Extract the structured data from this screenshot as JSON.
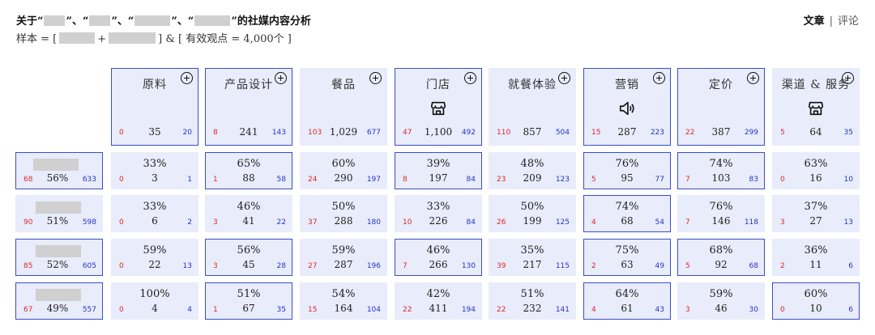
{
  "header": {
    "title_segments": [
      "关于“",
      "”、“",
      "”、“",
      "”、“",
      "”的社媒内容分析"
    ],
    "subtitle_prefix": "样本 = [",
    "subtitle_plus": "+",
    "subtitle_suffix": "] & [ 有效观点 = 4,000个 ]"
  },
  "view_switch": {
    "active": "文章",
    "separator": "|",
    "inactive": "评论"
  },
  "columns": [
    {
      "name": "原料",
      "icon": "plus-icon",
      "left": "0",
      "mid": "35",
      "right": "20",
      "selected": true
    },
    {
      "name": "产品设计",
      "icon": "plus-icon",
      "left": "8",
      "mid": "241",
      "right": "143",
      "selected": true
    },
    {
      "name": "餐品",
      "icon": "plus-icon",
      "left": "103",
      "mid": "1,029",
      "right": "677",
      "selected": false
    },
    {
      "name": "门店",
      "icon": "store-icon",
      "left": "47",
      "mid": "1,100",
      "right": "492",
      "selected": true
    },
    {
      "name": "就餐体验",
      "icon": "plus-icon",
      "left": "110",
      "mid": "857",
      "right": "504",
      "selected": false
    },
    {
      "name": "营销",
      "icon": "speaker-icon",
      "left": "15",
      "mid": "287",
      "right": "223",
      "selected": true
    },
    {
      "name": "定价",
      "icon": "plus-icon",
      "left": "22",
      "mid": "387",
      "right": "299",
      "selected": true
    },
    {
      "name": "渠道 & 服务",
      "icon": "store-icon",
      "left": "5",
      "mid": "64",
      "right": "35",
      "selected": false
    }
  ],
  "rows": [
    {
      "label": {
        "left": "68",
        "pct": "56%",
        "right": "633",
        "selected": true
      },
      "cells": [
        {
          "pct": "33%",
          "left": "0",
          "mid": "3",
          "right": "1",
          "selected": false
        },
        {
          "pct": "65%",
          "left": "1",
          "mid": "88",
          "right": "58",
          "selected": true
        },
        {
          "pct": "60%",
          "left": "24",
          "mid": "290",
          "right": "197",
          "selected": false
        },
        {
          "pct": "39%",
          "left": "8",
          "mid": "197",
          "right": "84",
          "selected": true
        },
        {
          "pct": "48%",
          "left": "23",
          "mid": "209",
          "right": "123",
          "selected": false
        },
        {
          "pct": "76%",
          "left": "5",
          "mid": "95",
          "right": "77",
          "selected": true
        },
        {
          "pct": "74%",
          "left": "7",
          "mid": "103",
          "right": "83",
          "selected": true
        },
        {
          "pct": "63%",
          "left": "0",
          "mid": "16",
          "right": "10",
          "selected": false
        }
      ]
    },
    {
      "label": {
        "left": "90",
        "pct": "51%",
        "right": "598",
        "selected": false
      },
      "cells": [
        {
          "pct": "33%",
          "left": "0",
          "mid": "6",
          "right": "2",
          "selected": false
        },
        {
          "pct": "46%",
          "left": "3",
          "mid": "41",
          "right": "22",
          "selected": false
        },
        {
          "pct": "50%",
          "left": "37",
          "mid": "288",
          "right": "180",
          "selected": false
        },
        {
          "pct": "33%",
          "left": "10",
          "mid": "226",
          "right": "84",
          "selected": false
        },
        {
          "pct": "50%",
          "left": "26",
          "mid": "199",
          "right": "125",
          "selected": false
        },
        {
          "pct": "74%",
          "left": "4",
          "mid": "68",
          "right": "54",
          "selected": true
        },
        {
          "pct": "76%",
          "left": "7",
          "mid": "146",
          "right": "118",
          "selected": false
        },
        {
          "pct": "37%",
          "left": "3",
          "mid": "27",
          "right": "13",
          "selected": false
        }
      ]
    },
    {
      "label": {
        "left": "85",
        "pct": "52%",
        "right": "605",
        "selected": true
      },
      "cells": [
        {
          "pct": "59%",
          "left": "0",
          "mid": "22",
          "right": "13",
          "selected": false
        },
        {
          "pct": "56%",
          "left": "3",
          "mid": "45",
          "right": "28",
          "selected": true
        },
        {
          "pct": "59%",
          "left": "27",
          "mid": "287",
          "right": "196",
          "selected": false
        },
        {
          "pct": "46%",
          "left": "7",
          "mid": "266",
          "right": "130",
          "selected": true
        },
        {
          "pct": "35%",
          "left": "39",
          "mid": "217",
          "right": "115",
          "selected": false
        },
        {
          "pct": "75%",
          "left": "2",
          "mid": "63",
          "right": "49",
          "selected": true
        },
        {
          "pct": "68%",
          "left": "5",
          "mid": "92",
          "right": "68",
          "selected": true
        },
        {
          "pct": "36%",
          "left": "2",
          "mid": "11",
          "right": "6",
          "selected": false
        }
      ]
    },
    {
      "label": {
        "left": "67",
        "pct": "49%",
        "right": "557",
        "selected": true
      },
      "cells": [
        {
          "pct": "100%",
          "left": "0",
          "mid": "4",
          "right": "4",
          "selected": false
        },
        {
          "pct": "51%",
          "left": "1",
          "mid": "67",
          "right": "35",
          "selected": true
        },
        {
          "pct": "54%",
          "left": "15",
          "mid": "164",
          "right": "104",
          "selected": false
        },
        {
          "pct": "42%",
          "left": "22",
          "mid": "411",
          "right": "194",
          "selected": false
        },
        {
          "pct": "51%",
          "left": "22",
          "mid": "232",
          "right": "141",
          "selected": false
        },
        {
          "pct": "64%",
          "left": "4",
          "mid": "61",
          "right": "43",
          "selected": true
        },
        {
          "pct": "59%",
          "left": "3",
          "mid": "46",
          "right": "30",
          "selected": false
        },
        {
          "pct": "60%",
          "left": "0",
          "mid": "10",
          "right": "6",
          "selected": true
        }
      ]
    }
  ],
  "colors": {
    "negative": "#e02828",
    "positive": "#2735c8",
    "cell_bg": "#e8ecfb",
    "selected_border": "#3a4fc7"
  }
}
